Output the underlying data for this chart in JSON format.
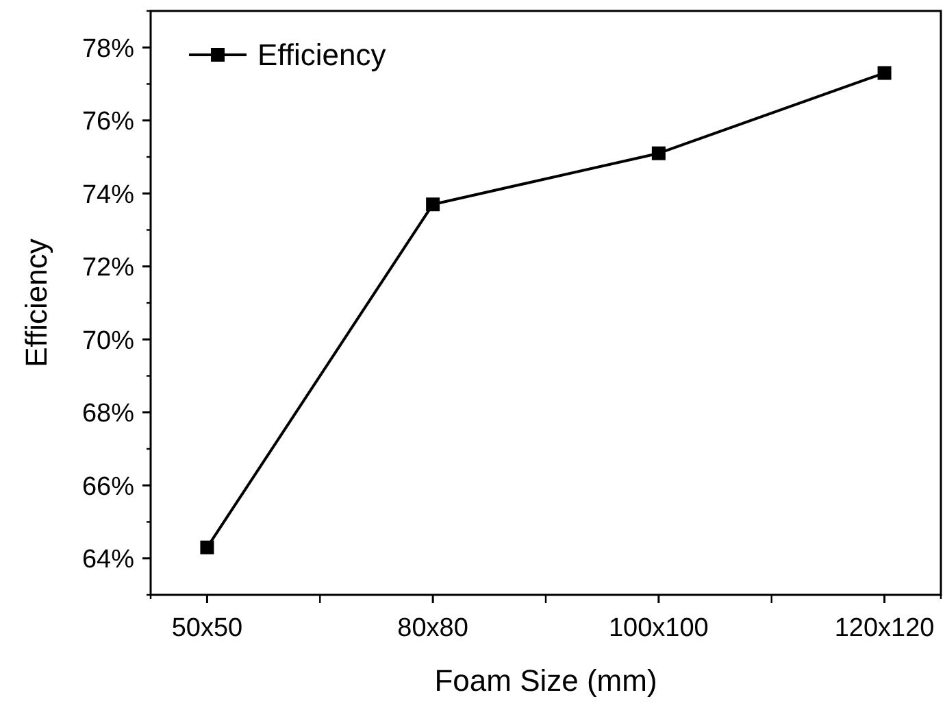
{
  "chart_data": {
    "type": "line",
    "xlabel": "Foam Size (mm)",
    "ylabel": "Efficiency",
    "categories": [
      "50x50",
      "80x80",
      "100x100",
      "120x120"
    ],
    "series": [
      {
        "name": "Efficiency",
        "color": "#000000",
        "values": [
          64.3,
          73.7,
          75.1,
          77.3
        ]
      }
    ],
    "ylim": [
      63,
      79
    ],
    "yticks": [
      {
        "value": 64,
        "label": "64%"
      },
      {
        "value": 66,
        "label": "66%"
      },
      {
        "value": 68,
        "label": "68%"
      },
      {
        "value": 70,
        "label": "70%"
      },
      {
        "value": 72,
        "label": "72%"
      },
      {
        "value": 74,
        "label": "74%"
      },
      {
        "value": 76,
        "label": "76%"
      },
      {
        "value": 78,
        "label": "78%"
      }
    ],
    "marker": "square",
    "line_style": "solid",
    "legend": "top left",
    "grid": false
  }
}
